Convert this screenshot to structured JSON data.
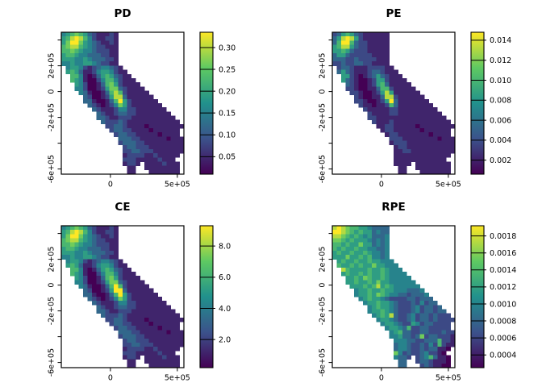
{
  "figure": {
    "background": "#ffffff"
  },
  "chart_data": {
    "type": "heatmap",
    "description": "2x2 grid of raster maps of California (projected coords, meters). Cell digit d encodes value = legend.vmin + (d/9)*(legend.vmax - legend.vmin); '.' = no data.",
    "grid_size": {
      "cols": 28,
      "rows": 34
    },
    "axes": {
      "xlim": [
        -367000,
        549000
      ],
      "ylim": [
        -640000,
        460000
      ],
      "xticks": [
        {
          "v": 0,
          "label": "0"
        },
        {
          "v": 500000,
          "label": "5e+05"
        }
      ],
      "yticks": [
        {
          "v": 400000,
          "label": ""
        },
        {
          "v": 200000,
          "label": "2e+05"
        },
        {
          "v": 0,
          "label": "0"
        },
        {
          "v": -200000,
          "label": "-2e+05"
        },
        {
          "v": -400000,
          "label": ""
        },
        {
          "v": -600000,
          "label": "-6e+05"
        }
      ]
    },
    "colormap": {
      "name": "viridis",
      "stops": [
        [
          0,
          "#440154"
        ],
        [
          0.25,
          "#3b528b"
        ],
        [
          0.5,
          "#21918c"
        ],
        [
          0.75,
          "#5ec962"
        ],
        [
          1,
          "#fde725"
        ]
      ]
    },
    "panels": [
      {
        "id": "pd",
        "title": "PD",
        "legend": {
          "vmin": 0.01,
          "vmax": 0.335,
          "ticks": [
            {
              "v": 0.05,
              "label": "0.05"
            },
            {
              "v": 0.1,
              "label": "0.10"
            },
            {
              "v": 0.15,
              "label": "0.15"
            },
            {
              "v": 0.2,
              "label": "0.20"
            },
            {
              "v": 0.25,
              "label": "0.25"
            },
            {
              "v": 0.3,
              "label": "0.30"
            }
          ]
        },
        "grid": [
          "4567653211121...............",
          "5689864211221...............",
          "5799754321121...............",
          "6788654322111...............",
          "6676544322211...............",
          "5665443332211...............",
          "5554454333221...............",
          "4454455432211...............",
          ".4554212344321..............",
          ".56531124554211.............",
          "..66410135653211............",
          "..654100246642111...........",
          "...542001367521111..........",
          "...4420012577321111.........",
          "....4310013686211111........",
          ".....3200125883111111.......",
          ".....33100136952111111......",
          "......32101247521111111.....",
          ".......32111244221111111....",
          "........32112332211111111...",
          "........332112221111111111..",
          ".........322232111111111111.",
          "..........223321111011111111",
          "...........2332211110111111.",
          "............233221111101111.",
          ".............333221111110111",
          ".............233322111111111",
          "..............23322211111111",
          "..............22332221111111",
          "..............1222211211111.",
          "..............222111112111..",
          "..............1221.11112111.",
          "...............11..11111111.",
          "...............11...1111111."
        ]
      },
      {
        "id": "pe",
        "title": "PE",
        "legend": {
          "vmin": 0.0006,
          "vmax": 0.0148,
          "ticks": [
            {
              "v": 0.002,
              "label": "0.002"
            },
            {
              "v": 0.004,
              "label": "0.004"
            },
            {
              "v": 0.006,
              "label": "0.006"
            },
            {
              "v": 0.008,
              "label": "0.008"
            },
            {
              "v": 0.01,
              "label": "0.010"
            },
            {
              "v": 0.012,
              "label": "0.012"
            },
            {
              "v": 0.014,
              "label": "0.014"
            }
          ]
        },
        "grid": [
          "2356532111111...............",
          "3589852111111...............",
          "3699632211111...............",
          "5688532211111...............",
          "5565322211111...............",
          "3553222221111...............",
          "3332232222111...............",
          "2232233221111...............",
          ".2332111222211..............",
          ".35321112332111.............",
          "..55210123532111............",
          "..532100125521111...........",
          "...321001256311111..........",
          "...2210011366211111.........",
          "....2210012585111111........",
          ".....2100113882111111.......",
          ".....22100125931111111......",
          "......21101126311111111.....",
          ".......21111122111111111....",
          "........21111221111111111...",
          "........221111111111111111..",
          ".........211121111111111111.",
          "..........112211111011111111",
          "...........1221111110111111.",
          "............122111111101111.",
          ".............222111111110111",
          ".............122211111111111",
          "..............12211111111111",
          "..............11221111111111",
          "..............1111111111111.",
          "..............111111111111..",
          "..............1111.11111111.",
          "...............11..11111111.",
          "...............11...1111111."
        ]
      },
      {
        "id": "ce",
        "title": "CE",
        "legend": {
          "vmin": 0.2,
          "vmax": 9.3,
          "ticks": [
            {
              "v": 2.0,
              "label": "2.0"
            },
            {
              "v": 4.0,
              "label": "4.0"
            },
            {
              "v": 6.0,
              "label": "6.0"
            },
            {
              "v": 8.0,
              "label": "8.0"
            }
          ]
        },
        "grid": [
          "4567653211121...............",
          "5689864211221...............",
          "5799754321121...............",
          "6788654322111...............",
          "6676544322211...............",
          "5665443332211...............",
          "5554454333221...............",
          "4454455432211...............",
          ".4554212344321..............",
          ".56531124554211.............",
          "..66410135653211............",
          "..654100246642111...........",
          "...542001367521111..........",
          "...4420012577321111.........",
          "....4310013696211111........",
          ".....3200125993111111.......",
          ".....33100136952111111......",
          "......32101247521111111.....",
          ".......32111244221111111....",
          "........32112332211111111...",
          "........332112221111111111..",
          ".........322232111111111111.",
          "..........223321111011111111",
          "...........2332211110111111.",
          "............233221111101111.",
          ".............333221111110111",
          ".............233322111111111",
          "..............23322211111111",
          "..............22332221111111",
          "..............1222211211111.",
          "..............222111112111..",
          "..............1221.11112111.",
          "...............11..11111111.",
          "...............11...1111111."
        ]
      },
      {
        "id": "rpe",
        "title": "RPE",
        "legend": {
          "vmin": 0.00025,
          "vmax": 0.00192,
          "ticks": [
            {
              "v": 0.0004,
              "label": "0.0004"
            },
            {
              "v": 0.0006,
              "label": "0.0006"
            },
            {
              "v": 0.0008,
              "label": "0.0008"
            },
            {
              "v": 0.001,
              "label": "0.0010"
            },
            {
              "v": 0.0012,
              "label": "0.0012"
            },
            {
              "v": 0.0014,
              "label": "0.0014"
            },
            {
              "v": 0.0016,
              "label": "0.0016"
            },
            {
              "v": 0.0018,
              "label": "0.0018"
            }
          ]
        },
        "grid": [
          "8987665543333...............",
          "9987656553433...............",
          "8876565453334...............",
          "7765655543434...............",
          "6656557553434...............",
          "6565565544334...............",
          "5655655654434...............",
          "5557556564434...............",
          ".5655655655444..............",
          ".65565655755444.............",
          "..86555565565444............",
          "..565565655654444...........",
          "...556576556544444..........",
          "...5565565755444444.........",
          "....5556568565444444........",
          ".....4556556554443334.......",
          ".....45565765443323334......",
          "......45655432222332333.....",
          ".......45565543222324233....",
          "........45655432223423323...",
          "........455654322234233233..",
          ".........456583223423323222.",
          "..........455432234233232222",
          "...........4554322542332222.",
          "............455436223322222.",
          ".............456332233222322",
          ".............445332372332221",
          "..............44433223336221",
          "..............34432232426211",
          "..............3443223233110.",
          "..............742322342210..",
          "..............4332.23463110.",
          "...............33..23321110.",
          "...............33...2321100."
        ]
      }
    ]
  }
}
